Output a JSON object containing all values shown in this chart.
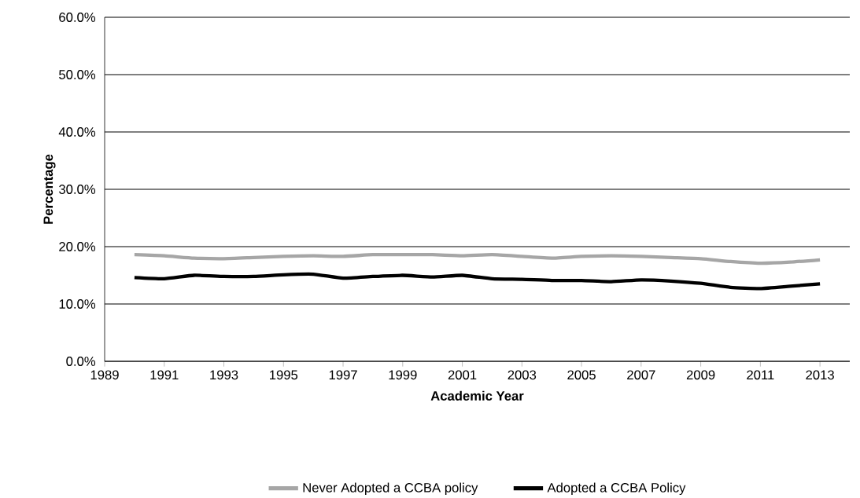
{
  "chart_data": {
    "type": "line",
    "xlabel": "Academic Year",
    "ylabel": "Percentage",
    "x": [
      1990,
      1991,
      1992,
      1993,
      1994,
      1995,
      1996,
      1997,
      1998,
      1999,
      2000,
      2001,
      2002,
      2003,
      2004,
      2005,
      2006,
      2007,
      2008,
      2009,
      2010,
      2011,
      2012,
      2013
    ],
    "series": [
      {
        "name": "Never Adopted a CCBA policy",
        "color": "#a6a6a6",
        "values": [
          18.6,
          18.4,
          18.0,
          17.9,
          18.1,
          18.3,
          18.4,
          18.3,
          18.6,
          18.6,
          18.6,
          18.4,
          18.6,
          18.3,
          18.0,
          18.3,
          18.4,
          18.3,
          18.1,
          17.9,
          17.4,
          17.1,
          17.3,
          17.7
        ]
      },
      {
        "name": "Adopted a CCBA Policy",
        "color": "#000000",
        "values": [
          14.6,
          14.4,
          15.0,
          14.8,
          14.8,
          15.1,
          15.2,
          14.5,
          14.8,
          15.0,
          14.7,
          15.0,
          14.4,
          14.3,
          14.1,
          14.1,
          13.9,
          14.2,
          14.0,
          13.6,
          12.9,
          12.7,
          13.1,
          13.5
        ]
      }
    ],
    "xlim": [
      1989,
      2014
    ],
    "xticks": [
      1989,
      1991,
      1993,
      1995,
      1997,
      1999,
      2001,
      2003,
      2005,
      2007,
      2009,
      2011,
      2013
    ],
    "ylim": [
      0,
      60
    ],
    "yticks": [
      {
        "value": 0,
        "label": "0.0%"
      },
      {
        "value": 10,
        "label": "10.0%"
      },
      {
        "value": 20,
        "label": "20.0%"
      },
      {
        "value": 30,
        "label": "30.0%"
      },
      {
        "value": 40,
        "label": "40.0%"
      },
      {
        "value": 50,
        "label": "50.0%"
      },
      {
        "value": 60,
        "label": "60.0%"
      }
    ],
    "grid": "y",
    "legend": "bottom",
    "marker": "none",
    "line_style": "solid"
  }
}
